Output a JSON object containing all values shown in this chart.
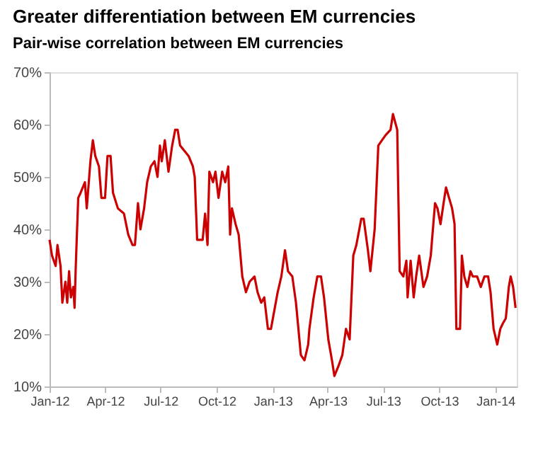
{
  "chart_data": {
    "type": "line",
    "title": "Greater differentiation between EM currencies",
    "subtitle": "Pair-wise correlation between EM currencies",
    "x": [
      "2012-01-01",
      "2012-01-05",
      "2012-01-11",
      "2012-01-14",
      "2012-01-19",
      "2012-01-22",
      "2012-01-27",
      "2012-01-30",
      "2012-02-02",
      "2012-02-05",
      "2012-02-09",
      "2012-02-11",
      "2012-02-13",
      "2012-02-17",
      "2012-02-21",
      "2012-02-28",
      "2012-03-02",
      "2012-03-08",
      "2012-03-12",
      "2012-03-16",
      "2012-03-22",
      "2012-03-26",
      "2012-04-01",
      "2012-04-05",
      "2012-04-10",
      "2012-04-14",
      "2012-04-22",
      "2012-05-02",
      "2012-05-09",
      "2012-05-16",
      "2012-05-20",
      "2012-05-25",
      "2012-05-29",
      "2012-06-04",
      "2012-06-09",
      "2012-06-15",
      "2012-06-21",
      "2012-06-26",
      "2012-06-30",
      "2012-07-03",
      "2012-07-08",
      "2012-07-14",
      "2012-07-20",
      "2012-07-25",
      "2012-07-29",
      "2012-08-02",
      "2012-08-09",
      "2012-08-16",
      "2012-08-23",
      "2012-08-26",
      "2012-08-30",
      "2012-09-08",
      "2012-09-12",
      "2012-09-16",
      "2012-09-19",
      "2012-09-25",
      "2012-09-29",
      "2012-10-04",
      "2012-10-10",
      "2012-10-15",
      "2012-10-20",
      "2012-10-23",
      "2012-10-26",
      "2012-11-01",
      "2012-11-06",
      "2012-11-12",
      "2012-11-18",
      "2012-11-24",
      "2012-12-02",
      "2012-12-07",
      "2012-12-13",
      "2012-12-18",
      "2012-12-24",
      "2012-12-29",
      "2013-01-09",
      "2013-01-15",
      "2013-01-21",
      "2013-01-26",
      "2013-02-02",
      "2013-02-08",
      "2013-02-16",
      "2013-02-22",
      "2013-02-28",
      "2013-03-02",
      "2013-03-09",
      "2013-03-15",
      "2013-03-21",
      "2013-03-26",
      "2013-04-02",
      "2013-04-08",
      "2013-04-12",
      "2013-04-19",
      "2013-04-25",
      "2013-05-01",
      "2013-05-07",
      "2013-05-13",
      "2013-05-18",
      "2013-05-26",
      "2013-05-30",
      "2013-06-06",
      "2013-06-10",
      "2013-06-17",
      "2013-06-23",
      "2013-06-29",
      "2013-07-05",
      "2013-07-13",
      "2013-07-17",
      "2013-07-24",
      "2013-07-28",
      "2013-08-03",
      "2013-08-08",
      "2013-08-10",
      "2013-08-15",
      "2013-08-20",
      "2013-08-24",
      "2013-08-29",
      "2013-09-05",
      "2013-09-11",
      "2013-09-17",
      "2013-09-24",
      "2013-09-28",
      "2013-10-03",
      "2013-10-08",
      "2013-10-12",
      "2013-10-17",
      "2013-10-22",
      "2013-10-26",
      "2013-10-29",
      "2013-11-04",
      "2013-11-07",
      "2013-11-11",
      "2013-11-16",
      "2013-11-21",
      "2013-11-25",
      "2013-12-02",
      "2013-12-08",
      "2013-12-14",
      "2013-12-20",
      "2013-12-24",
      "2013-12-29",
      "2014-01-04",
      "2014-01-09",
      "2014-01-13",
      "2014-01-18",
      "2014-01-23",
      "2014-01-26",
      "2014-01-30",
      "2014-02-03"
    ],
    "series": [
      {
        "color": "#cc0000",
        "values": [
          38,
          35,
          33,
          37,
          33,
          26,
          30,
          26,
          32,
          27,
          29,
          25,
          33,
          46,
          47,
          49,
          44,
          53,
          57,
          54,
          52,
          46,
          46,
          54,
          54,
          47,
          44,
          43,
          39,
          37,
          37,
          45,
          40,
          44,
          49,
          52,
          53,
          50,
          56,
          53,
          57,
          51,
          56,
          59,
          59,
          56,
          55,
          54,
          52,
          50,
          38,
          38,
          43,
          37,
          51,
          49,
          51,
          46,
          51,
          49,
          52,
          39,
          44,
          41,
          39,
          31,
          28,
          30,
          31,
          28,
          26,
          27,
          21,
          21,
          28,
          31,
          36,
          32,
          31,
          26,
          16,
          15,
          18,
          21,
          27,
          31,
          31,
          27,
          19,
          15,
          12,
          14,
          16,
          21,
          19,
          35,
          37,
          42,
          42,
          36,
          32,
          40,
          56,
          57,
          58,
          59,
          62,
          59,
          32,
          31,
          34,
          27,
          34,
          27,
          31,
          35,
          29,
          31,
          35,
          45,
          44,
          41,
          45,
          48,
          46,
          44,
          41,
          21,
          21,
          35,
          31,
          29,
          32,
          31,
          31,
          29,
          31,
          31,
          28,
          21,
          18,
          21,
          22,
          23,
          29,
          31,
          29,
          25
        ]
      }
    ],
    "xlim": [
      "2012-01-01",
      "2014-02-05"
    ],
    "xticks": [
      {
        "value": "2012-01-01",
        "label": "Jan-12"
      },
      {
        "value": "2012-04-01",
        "label": "Apr-12"
      },
      {
        "value": "2012-07-01",
        "label": "Jul-12"
      },
      {
        "value": "2012-10-01",
        "label": "Oct-12"
      },
      {
        "value": "2013-01-01",
        "label": "Jan-13"
      },
      {
        "value": "2013-04-01",
        "label": "Apr-13"
      },
      {
        "value": "2013-07-01",
        "label": "Jul-13"
      },
      {
        "value": "2013-10-01",
        "label": "Oct-13"
      },
      {
        "value": "2014-01-01",
        "label": "Jan-14"
      }
    ],
    "ylim": [
      10,
      70
    ],
    "yticks": [
      {
        "value": 10,
        "label": "10%"
      },
      {
        "value": 20,
        "label": "20%"
      },
      {
        "value": 30,
        "label": "30%"
      },
      {
        "value": 40,
        "label": "40%"
      },
      {
        "value": 50,
        "label": "50%"
      },
      {
        "value": 60,
        "label": "60%"
      },
      {
        "value": 70,
        "label": "70%"
      }
    ],
    "grid": false,
    "marker": "none",
    "line_style": "solid"
  }
}
